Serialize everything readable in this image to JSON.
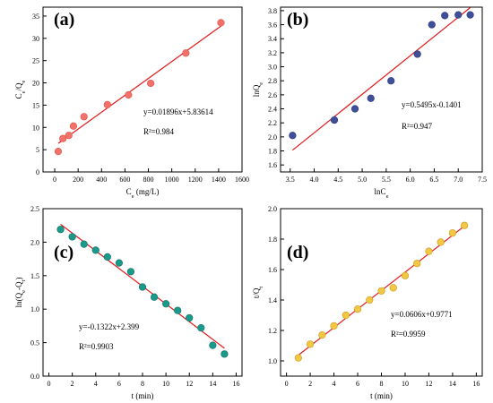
{
  "chart_data": [
    {
      "panel": "(a)",
      "type": "scatter",
      "xlabel": "C_e (mg/L)",
      "ylabel": "C_e/Q_e",
      "xlim": [
        -100,
        1600
      ],
      "ylim": [
        0,
        37
      ],
      "xticks": [
        0,
        200,
        400,
        600,
        800,
        1000,
        1200,
        1400,
        1600
      ],
      "yticks": [
        0,
        5,
        10,
        15,
        20,
        25,
        30,
        35
      ],
      "marker_color": "#f27168",
      "marker_edge": "#e0534a",
      "fit_color": "#e31a1c",
      "points": [
        [
          30,
          4.6
        ],
        [
          70,
          7.5
        ],
        [
          120,
          8.2
        ],
        [
          160,
          10.3
        ],
        [
          250,
          12.4
        ],
        [
          450,
          15.1
        ],
        [
          630,
          17.3
        ],
        [
          820,
          19.9
        ],
        [
          1120,
          26.7
        ],
        [
          1420,
          33.5
        ]
      ],
      "fit": {
        "x": [
          30,
          1420
        ],
        "slope": 0.01896,
        "intercept": 5.83614
      },
      "equation": "y=0.01896x+5.83614",
      "r2": "R²=0.984"
    },
    {
      "panel": "(b)",
      "type": "scatter",
      "xlabel": "lnC_e",
      "ylabel": "lnQ_e",
      "xlim": [
        3.3,
        7.5
      ],
      "ylim": [
        1.5,
        3.85
      ],
      "xticks": [
        3.5,
        4.0,
        4.5,
        5.0,
        5.5,
        6.0,
        6.5,
        7.0,
        7.5
      ],
      "yticks": [
        1.6,
        1.8,
        2.0,
        2.2,
        2.4,
        2.6,
        2.8,
        3.0,
        3.2,
        3.4,
        3.6,
        3.8
      ],
      "marker_color": "#3f4f9a",
      "marker_edge": "#2a3577",
      "fit_color": "#e31a1c",
      "points": [
        [
          3.55,
          2.02
        ],
        [
          4.42,
          2.24
        ],
        [
          4.85,
          2.4
        ],
        [
          5.18,
          2.55
        ],
        [
          5.6,
          2.8
        ],
        [
          6.15,
          3.18
        ],
        [
          6.45,
          3.6
        ],
        [
          6.72,
          3.73
        ],
        [
          7.0,
          3.74
        ],
        [
          7.25,
          3.74
        ]
      ],
      "fit": {
        "x": [
          3.55,
          7.25
        ],
        "slope": 0.5495,
        "intercept": -0.1401
      },
      "equation": "y=0.5495x-0.1401",
      "r2": "R²=0.947"
    },
    {
      "panel": "(c)",
      "type": "scatter",
      "xlabel": "t (min)",
      "ylabel": "ln(Q_e-Q_t)",
      "xlim": [
        -0.5,
        16.5
      ],
      "ylim": [
        0,
        2.5
      ],
      "xticks": [
        0,
        2,
        4,
        6,
        8,
        10,
        12,
        14,
        16
      ],
      "yticks": [
        0.0,
        0.5,
        1.0,
        1.5,
        2.0,
        2.5
      ],
      "marker_color": "#1a9a8a",
      "marker_edge": "#0f6f63",
      "fit_color": "#e31a1c",
      "points": [
        [
          1,
          2.19
        ],
        [
          2,
          2.08
        ],
        [
          3,
          1.97
        ],
        [
          4,
          1.88
        ],
        [
          5,
          1.78
        ],
        [
          6,
          1.69
        ],
        [
          7,
          1.56
        ],
        [
          8,
          1.33
        ],
        [
          9,
          1.18
        ],
        [
          10,
          1.08
        ],
        [
          11,
          0.98
        ],
        [
          12,
          0.87
        ],
        [
          13,
          0.72
        ],
        [
          14,
          0.46
        ],
        [
          15,
          0.33
        ]
      ],
      "fit": {
        "x": [
          1,
          15
        ],
        "slope": -0.1322,
        "intercept": 2.399
      },
      "equation": "y=-0.1322x+2.399",
      "r2": "R²=0.9903"
    },
    {
      "panel": "(d)",
      "type": "scatter",
      "xlabel": "t (min)",
      "ylabel": "t/Q_t",
      "xlim": [
        -0.5,
        16.5
      ],
      "ylim": [
        0.9,
        2.0
      ],
      "xticks": [
        0,
        2,
        4,
        6,
        8,
        10,
        12,
        14,
        16
      ],
      "yticks": [
        1.0,
        1.2,
        1.4,
        1.6,
        1.8,
        2.0
      ],
      "marker_color": "#f2c744",
      "marker_edge": "#c99b1a",
      "fit_color": "#e31a1c",
      "points": [
        [
          1,
          1.02
        ],
        [
          2,
          1.11
        ],
        [
          3,
          1.17
        ],
        [
          4,
          1.23
        ],
        [
          5,
          1.3
        ],
        [
          6,
          1.34
        ],
        [
          7,
          1.4
        ],
        [
          8,
          1.46
        ],
        [
          9,
          1.48
        ],
        [
          10,
          1.56
        ],
        [
          11,
          1.64
        ],
        [
          12,
          1.72
        ],
        [
          13,
          1.78
        ],
        [
          14,
          1.84
        ],
        [
          15,
          1.89
        ]
      ],
      "fit": {
        "x": [
          1,
          15
        ],
        "slope": 0.0606,
        "intercept": 0.9771
      },
      "equation": "y=0.0606x+0.9771",
      "r2": "R²=0.9959"
    }
  ]
}
